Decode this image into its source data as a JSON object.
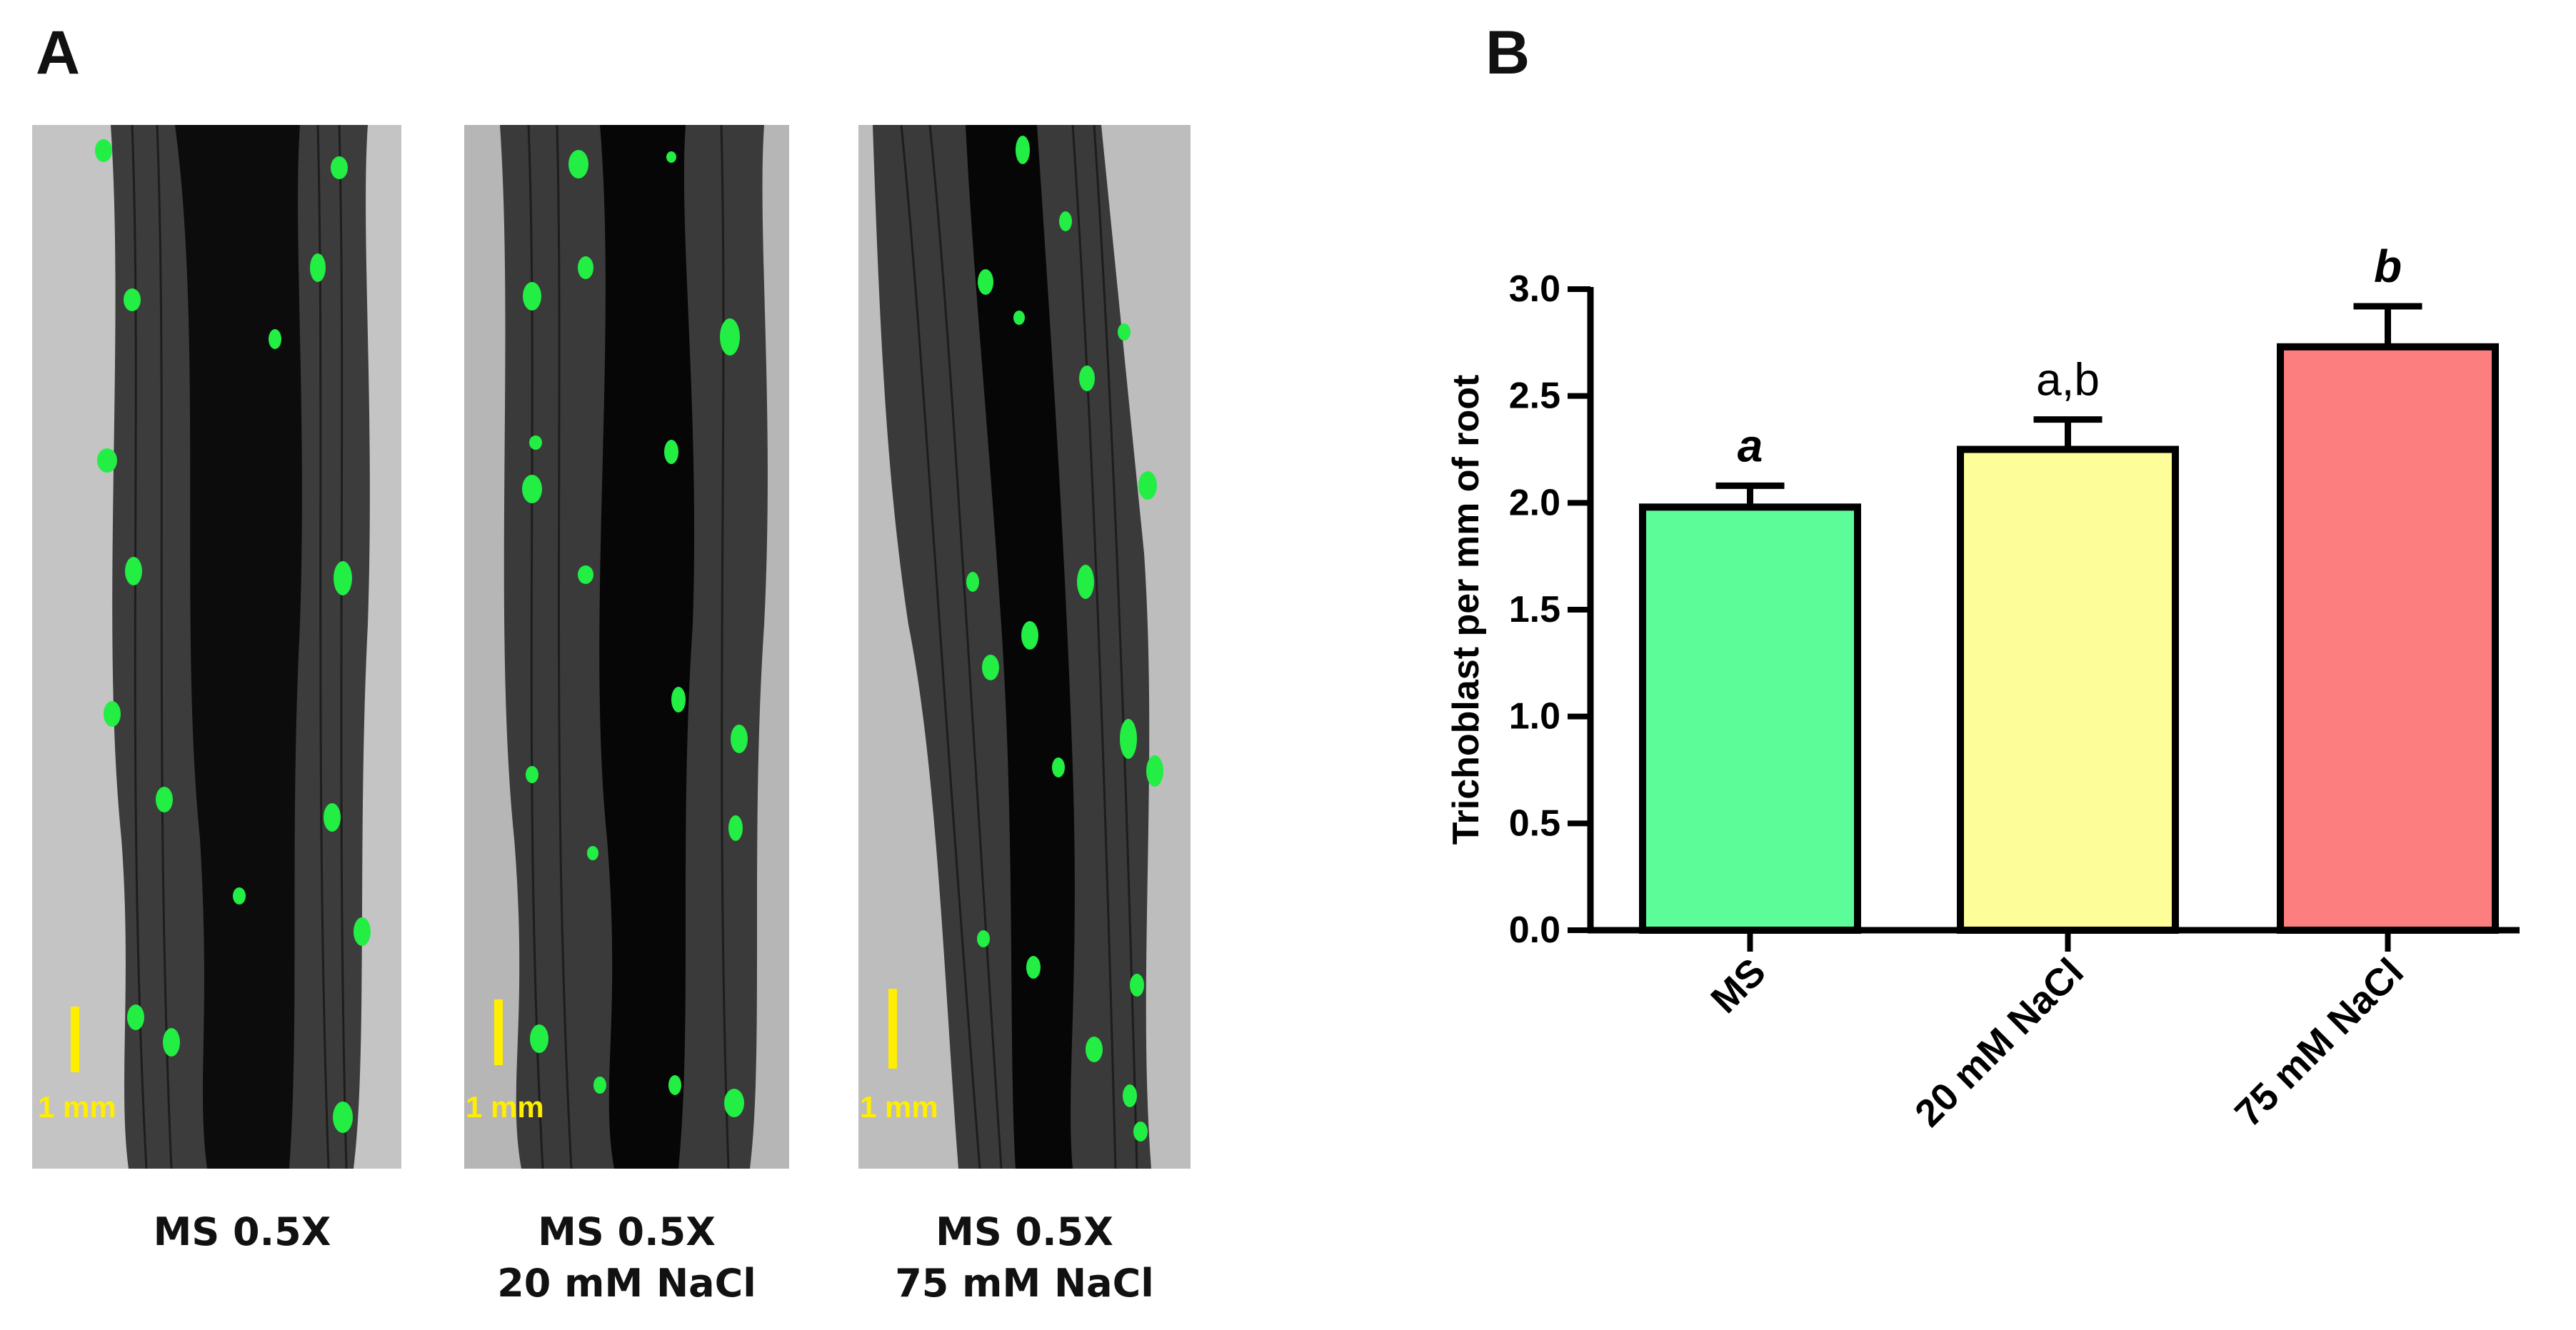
{
  "panels": {
    "a_label": "A",
    "b_label": "B"
  },
  "micrographs": [
    {
      "caption_line1": "MS 0.5X",
      "caption_line2": "",
      "scale_label": "1 mm"
    },
    {
      "caption_line1": "MS 0.5X",
      "caption_line2": "20 mM NaCl",
      "scale_label": "1 mm"
    },
    {
      "caption_line1": "MS 0.5X",
      "caption_line2": "75 mM NaCl",
      "scale_label": "1 mm"
    }
  ],
  "colors": {
    "gfp": "#22ee44",
    "scale_bar": "#ffee00",
    "bar_ms": "#5cfc98",
    "bar_20": "#fdfe9a",
    "bar_75": "#fd7e7e",
    "outline": "#000000"
  },
  "chart_data": {
    "type": "bar",
    "title": "",
    "xlabel": "",
    "ylabel": "Trichoblast per mm of root",
    "categories": [
      "MS",
      "20 mM NaCl",
      "75 mM NaCl"
    ],
    "values": [
      1.98,
      2.25,
      2.73
    ],
    "errors": [
      0.1,
      0.14,
      0.19
    ],
    "significance": [
      "a",
      "a,b",
      "b"
    ],
    "significance_italic": [
      true,
      false,
      true
    ],
    "ylim": [
      0,
      3.0
    ],
    "yticks": [
      "0.0",
      "0.5",
      "1.0",
      "1.5",
      "2.0",
      "2.5",
      "3.0"
    ],
    "bar_colors": [
      "#5cfc98",
      "#fdfe9a",
      "#fd7e7e"
    ],
    "grid": false,
    "legend": "none"
  }
}
